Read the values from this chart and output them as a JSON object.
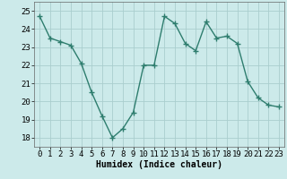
{
  "x": [
    0,
    1,
    2,
    3,
    4,
    5,
    6,
    7,
    8,
    9,
    10,
    11,
    12,
    13,
    14,
    15,
    16,
    17,
    18,
    19,
    20,
    21,
    22,
    23
  ],
  "y": [
    24.7,
    23.5,
    23.3,
    23.1,
    22.1,
    20.5,
    19.2,
    18.0,
    18.5,
    19.4,
    22.0,
    22.0,
    24.7,
    24.3,
    23.2,
    22.8,
    24.4,
    23.5,
    23.6,
    23.2,
    21.1,
    20.2,
    19.8,
    19.7
  ],
  "line_color": "#2e7d6e",
  "marker": "+",
  "marker_size": 4,
  "line_width": 1.0,
  "bg_color": "#cceaea",
  "grid_color": "#aacece",
  "xlabel": "Humidex (Indice chaleur)",
  "ylim": [
    17.5,
    25.5
  ],
  "yticks": [
    18,
    19,
    20,
    21,
    22,
    23,
    24,
    25
  ],
  "xticks": [
    0,
    1,
    2,
    3,
    4,
    5,
    6,
    7,
    8,
    9,
    10,
    11,
    12,
    13,
    14,
    15,
    16,
    17,
    18,
    19,
    20,
    21,
    22,
    23
  ],
  "xlabel_fontsize": 7,
  "tick_fontsize": 6.5
}
